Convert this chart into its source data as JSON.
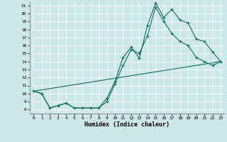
{
  "xlabel": "Humidex (Indice chaleur)",
  "bg_color": "#cce8e8",
  "line_color": "#1a6b5a",
  "xlim": [
    -0.5,
    23.5
  ],
  "ylim": [
    7.5,
    21.5
  ],
  "xticks": [
    0,
    1,
    2,
    3,
    4,
    5,
    6,
    7,
    8,
    9,
    10,
    11,
    12,
    13,
    14,
    15,
    16,
    17,
    18,
    19,
    20,
    21,
    22,
    23
  ],
  "yticks": [
    8,
    9,
    10,
    11,
    12,
    13,
    14,
    15,
    16,
    17,
    18,
    19,
    20,
    21
  ],
  "line1_x": [
    0,
    1,
    2,
    3,
    4,
    5,
    6,
    7,
    8,
    9,
    10,
    11,
    12,
    13,
    14,
    15,
    16,
    17,
    18,
    19,
    20,
    21,
    22,
    23
  ],
  "line1_y": [
    10.3,
    10.0,
    8.2,
    8.5,
    8.8,
    8.2,
    8.2,
    8.2,
    8.2,
    9.4,
    11.5,
    14.5,
    15.8,
    14.4,
    18.5,
    21.3,
    19.5,
    20.5,
    19.2,
    18.8,
    16.8,
    16.5,
    15.2,
    14.0
  ],
  "line2_x": [
    0,
    1,
    2,
    3,
    4,
    5,
    6,
    7,
    8,
    9,
    10,
    11,
    12,
    13,
    14,
    15,
    16,
    17,
    18,
    19,
    20,
    21,
    22,
    23
  ],
  "line2_y": [
    10.3,
    10.0,
    8.2,
    8.5,
    8.8,
    8.2,
    8.2,
    8.2,
    8.2,
    9.0,
    11.2,
    13.5,
    15.5,
    15.0,
    17.2,
    20.8,
    19.0,
    17.5,
    16.5,
    16.0,
    14.5,
    14.0,
    13.5,
    14.0
  ],
  "line3_x": [
    0,
    23
  ],
  "line3_y": [
    10.3,
    14.0
  ]
}
